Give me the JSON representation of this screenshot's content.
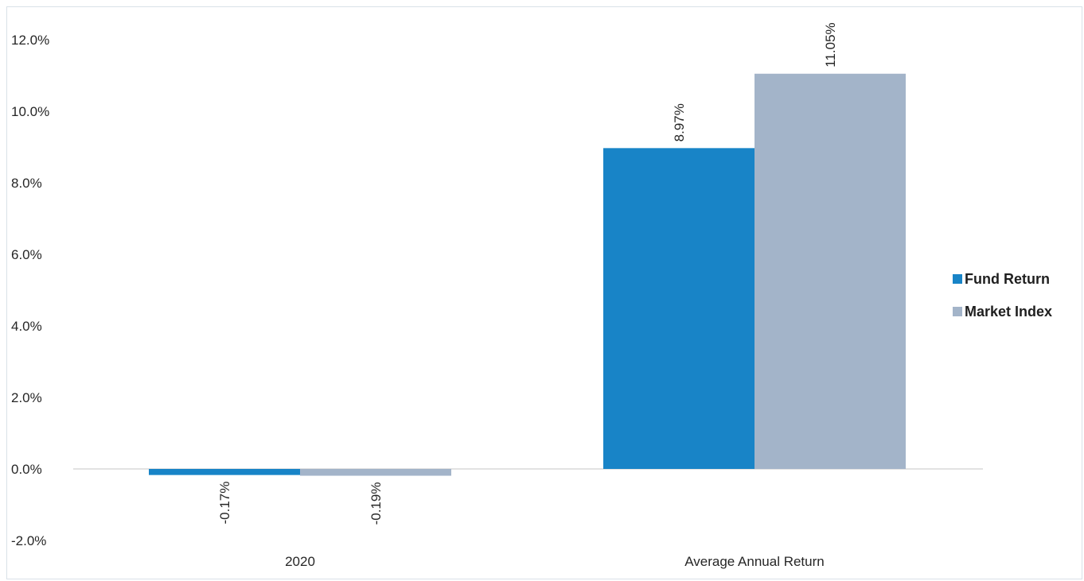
{
  "chart_data": {
    "type": "bar",
    "categories": [
      "2020",
      "Average Annual Return"
    ],
    "series": [
      {
        "name": "Fund Return",
        "values": [
          -0.17,
          8.97
        ],
        "labels": [
          "-0.17%",
          "8.97%"
        ],
        "color": "#1884c7"
      },
      {
        "name": "Market Index",
        "values": [
          -0.19,
          11.05
        ],
        "labels": [
          "-0.19%",
          "11.05%"
        ],
        "color": "#a3b4c9"
      }
    ],
    "ylim": [
      -2,
      12
    ],
    "y_ticks": [
      -2,
      0,
      2,
      4,
      6,
      8,
      10,
      12
    ],
    "y_tick_labels": [
      "-2.0%",
      "0.0%",
      "2.0%",
      "4.0%",
      "6.0%",
      "8.0%",
      "10.0%",
      "12.0%"
    ],
    "title": "",
    "xlabel": "",
    "ylabel": "",
    "grid": false,
    "legend_position": "right",
    "axis_color": "#d9d9d9"
  }
}
